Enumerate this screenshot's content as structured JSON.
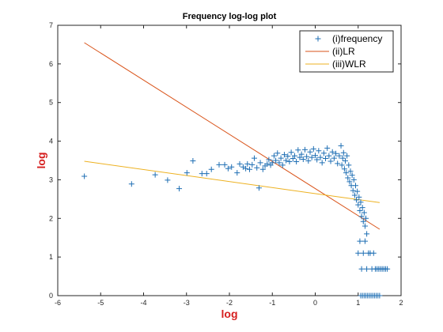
{
  "chart_data": {
    "type": "scatter",
    "title": "Frequency log-log plot",
    "xlabel": "log",
    "ylabel": "log",
    "xlim": [
      -6,
      2
    ],
    "ylim": [
      0,
      7
    ],
    "xticks": [
      "-6",
      "-5",
      "-4",
      "-3",
      "-2",
      "-1",
      "0",
      "1",
      "2"
    ],
    "yticks": [
      "0",
      "1",
      "2",
      "3",
      "4",
      "5",
      "6",
      "7"
    ],
    "grid": false,
    "legend_position": "top-right",
    "colors": {
      "frequency": "#1f6fb4",
      "lr": "#d95319",
      "wlr": "#edb120",
      "axis_label": "#d62020"
    },
    "series": [
      {
        "name": "(i)frequency",
        "type": "scatter",
        "marker": "+",
        "points": [
          [
            -5.38,
            3.09
          ],
          [
            -4.28,
            2.89
          ],
          [
            -3.73,
            3.13
          ],
          [
            -3.44,
            2.99
          ],
          [
            -3.17,
            2.77
          ],
          [
            -2.99,
            3.18
          ],
          [
            -2.85,
            3.49
          ],
          [
            -2.64,
            3.16
          ],
          [
            -2.53,
            3.16
          ],
          [
            -2.42,
            3.27
          ],
          [
            -2.24,
            3.39
          ],
          [
            -2.11,
            3.39
          ],
          [
            -2.03,
            3.29
          ],
          [
            -1.95,
            3.33
          ],
          [
            -1.82,
            3.18
          ],
          [
            -1.76,
            3.41
          ],
          [
            -1.68,
            3.33
          ],
          [
            -1.62,
            3.29
          ],
          [
            -1.58,
            3.41
          ],
          [
            -1.53,
            3.27
          ],
          [
            -1.47,
            3.39
          ],
          [
            -1.42,
            3.56
          ],
          [
            -1.36,
            3.31
          ],
          [
            -1.31,
            2.79
          ],
          [
            -1.28,
            3.44
          ],
          [
            -1.22,
            3.27
          ],
          [
            -1.17,
            3.36
          ],
          [
            -1.12,
            3.41
          ],
          [
            -1.08,
            3.52
          ],
          [
            -1.04,
            3.38
          ],
          [
            -1.0,
            3.44
          ],
          [
            -0.96,
            3.62
          ],
          [
            -0.92,
            3.5
          ],
          [
            -0.88,
            3.69
          ],
          [
            -0.84,
            3.44
          ],
          [
            -0.8,
            3.56
          ],
          [
            -0.76,
            3.38
          ],
          [
            -0.72,
            3.65
          ],
          [
            -0.68,
            3.5
          ],
          [
            -0.64,
            3.61
          ],
          [
            -0.6,
            3.47
          ],
          [
            -0.56,
            3.71
          ],
          [
            -0.52,
            3.55
          ],
          [
            -0.48,
            3.62
          ],
          [
            -0.44,
            3.47
          ],
          [
            -0.4,
            3.77
          ],
          [
            -0.36,
            3.58
          ],
          [
            -0.32,
            3.66
          ],
          [
            -0.28,
            3.53
          ],
          [
            -0.24,
            3.78
          ],
          [
            -0.2,
            3.6
          ],
          [
            -0.16,
            3.49
          ],
          [
            -0.12,
            3.72
          ],
          [
            -0.08,
            3.58
          ],
          [
            -0.04,
            3.8
          ],
          [
            0.0,
            3.63
          ],
          [
            0.04,
            3.52
          ],
          [
            0.08,
            3.75
          ],
          [
            0.12,
            3.58
          ],
          [
            0.16,
            3.44
          ],
          [
            0.2,
            3.69
          ],
          [
            0.24,
            3.55
          ],
          [
            0.28,
            3.82
          ],
          [
            0.32,
            3.62
          ],
          [
            0.36,
            3.48
          ],
          [
            0.4,
            3.72
          ],
          [
            0.44,
            3.56
          ],
          [
            0.48,
            3.68
          ],
          [
            0.52,
            3.42
          ],
          [
            0.56,
            3.62
          ],
          [
            0.6,
            3.88
          ],
          [
            0.62,
            3.38
          ],
          [
            0.64,
            3.56
          ],
          [
            0.66,
            3.7
          ],
          [
            0.68,
            3.28
          ],
          [
            0.7,
            3.49
          ],
          [
            0.72,
            3.18
          ],
          [
            0.74,
            3.62
          ],
          [
            0.76,
            3.05
          ],
          [
            0.78,
            3.38
          ],
          [
            0.8,
            2.95
          ],
          [
            0.82,
            3.22
          ],
          [
            0.84,
            2.85
          ],
          [
            0.86,
            3.12
          ],
          [
            0.88,
            2.72
          ],
          [
            0.9,
            3.0
          ],
          [
            0.92,
            2.6
          ],
          [
            0.94,
            2.85
          ],
          [
            0.96,
            2.48
          ],
          [
            0.98,
            2.7
          ],
          [
            1.0,
            2.35
          ],
          [
            1.02,
            2.55
          ],
          [
            1.04,
            2.2
          ],
          [
            1.06,
            2.42
          ],
          [
            1.08,
            2.05
          ],
          [
            1.1,
            2.28
          ],
          [
            1.12,
            1.92
          ],
          [
            1.14,
            2.15
          ],
          [
            1.16,
            1.8
          ],
          [
            1.18,
            2.0
          ],
          [
            1.2,
            1.6
          ],
          [
            1.0,
            1.1
          ],
          [
            1.04,
            1.41
          ],
          [
            1.08,
            0.69
          ],
          [
            1.12,
            1.1
          ],
          [
            1.16,
            1.41
          ],
          [
            1.2,
            0.69
          ],
          [
            1.24,
            1.1
          ],
          [
            1.28,
            1.1
          ],
          [
            1.32,
            0.69
          ],
          [
            1.36,
            1.1
          ],
          [
            1.4,
            0.69
          ],
          [
            1.44,
            0.69
          ],
          [
            1.48,
            0.69
          ],
          [
            1.52,
            0.69
          ],
          [
            1.56,
            0.69
          ],
          [
            1.6,
            0.69
          ],
          [
            1.64,
            0.69
          ],
          [
            1.68,
            0.69
          ],
          [
            1.06,
            0.0
          ],
          [
            1.1,
            0.0
          ],
          [
            1.14,
            0.0
          ],
          [
            1.18,
            0.0
          ],
          [
            1.22,
            0.0
          ],
          [
            1.26,
            0.0
          ],
          [
            1.3,
            0.0
          ],
          [
            1.34,
            0.0
          ],
          [
            1.38,
            0.0
          ],
          [
            1.42,
            0.0
          ],
          [
            1.46,
            0.0
          ],
          [
            1.5,
            0.0
          ]
        ]
      },
      {
        "name": "(ii)LR",
        "type": "line",
        "points": [
          [
            -5.38,
            6.55
          ],
          [
            1.5,
            1.72
          ]
        ]
      },
      {
        "name": "(iii)WLR",
        "type": "line",
        "points": [
          [
            -5.38,
            3.48
          ],
          [
            1.5,
            2.41
          ]
        ]
      }
    ]
  }
}
